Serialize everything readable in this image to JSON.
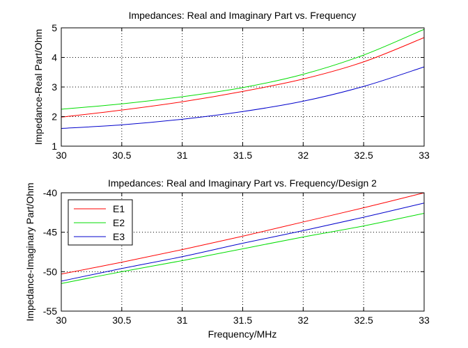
{
  "chart_data": [
    {
      "type": "line",
      "title": "Impedances: Real and Imaginary Part vs. Frequency",
      "xlabel": "",
      "ylabel": "Impedance-Real Part/Ohm",
      "xlim": [
        30,
        33
      ],
      "ylim": [
        1,
        5
      ],
      "xticks": [
        "30",
        "30.5",
        "31",
        "31.5",
        "32",
        "32.5",
        "33"
      ],
      "yticks": [
        "1",
        "2",
        "3",
        "4",
        "5"
      ],
      "grid": true,
      "x": [
        30,
        30.5,
        31,
        31.5,
        32,
        32.5,
        33
      ],
      "series": [
        {
          "color": "#ff0000",
          "values": [
            1.98,
            2.22,
            2.5,
            2.85,
            3.27,
            3.85,
            4.67
          ]
        },
        {
          "color": "#00dd00",
          "values": [
            2.25,
            2.43,
            2.67,
            2.98,
            3.43,
            4.08,
            4.95
          ]
        },
        {
          "color": "#0000cc",
          "values": [
            1.6,
            1.72,
            1.91,
            2.17,
            2.52,
            3.02,
            3.68
          ]
        }
      ]
    },
    {
      "type": "line",
      "title": "Impedances: Real and Imaginary Part vs. Frequency/Design 2",
      "xlabel": "Frequency/MHz",
      "ylabel": "Impedance-Imaginary Part/Ohm",
      "xlim": [
        30,
        33
      ],
      "ylim": [
        -55,
        -40
      ],
      "xticks": [
        "30",
        "30.5",
        "31",
        "31.5",
        "32",
        "32.5",
        "33"
      ],
      "yticks": [
        "-55",
        "-50",
        "-45",
        "-40"
      ],
      "grid": true,
      "legend_position": "top-left",
      "x": [
        30,
        30.5,
        31,
        31.5,
        32,
        32.5,
        33
      ],
      "series": [
        {
          "name": "E1",
          "color": "#ff0000",
          "values": [
            -50.3,
            -48.8,
            -47.2,
            -45.5,
            -43.7,
            -41.9,
            -40.0
          ]
        },
        {
          "name": "E2",
          "color": "#00dd00",
          "values": [
            -51.5,
            -50.0,
            -48.6,
            -47.1,
            -45.6,
            -44.2,
            -42.6
          ]
        },
        {
          "name": "E3",
          "color": "#0000cc",
          "values": [
            -51.2,
            -49.6,
            -48.1,
            -46.4,
            -44.8,
            -43.1,
            -41.3
          ]
        }
      ]
    }
  ]
}
